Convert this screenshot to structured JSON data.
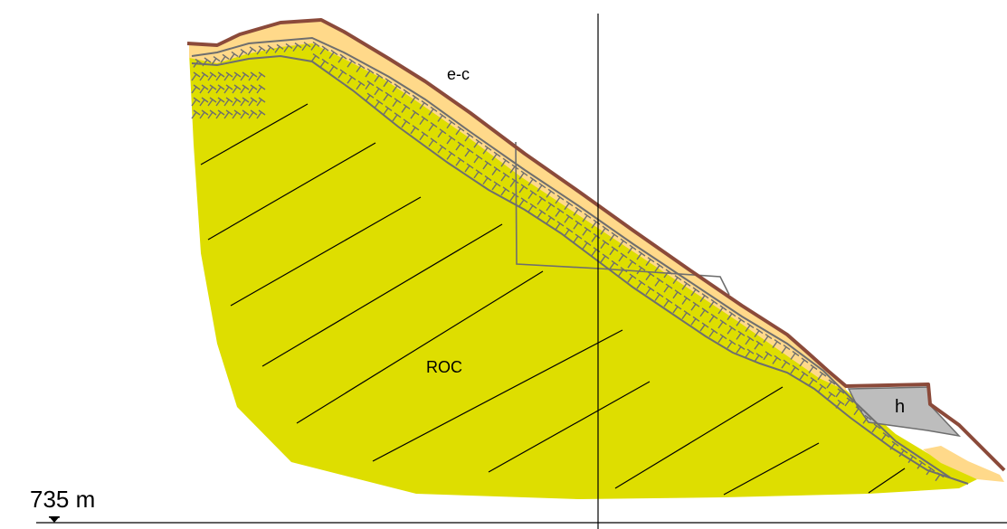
{
  "labels": {
    "cover": "e-c",
    "rock": "ROC",
    "fill": "h",
    "elevation": "735 m"
  },
  "colors": {
    "rock": "#dede00",
    "cover": "#ffd98a",
    "surface_line": "#8b4a3a",
    "fill_zone": "#bdbdbd",
    "fracture_hatch": "#6e6e6e",
    "section_line": "#000000"
  }
}
